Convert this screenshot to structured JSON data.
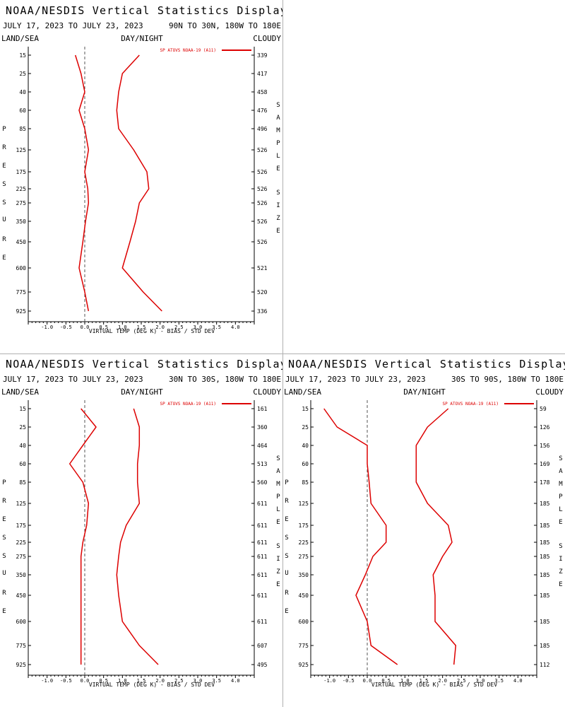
{
  "colors": {
    "series": "#dd0000",
    "axis": "#000000",
    "zero_line": "#555555",
    "divider": "#b0b0b0"
  },
  "chart_data": [
    {
      "type": "line",
      "title": "NOAA/NESDIS Vertical Statistics Display",
      "date_range": "JULY 17, 2023 TO JULY 23, 2023",
      "region": "90N TO 30N, 180W TO 180E",
      "left_header": "LAND/SEA",
      "center_header": "DAY/NIGHT",
      "right_header": "CLOUDY",
      "left_axis_label": "PRESSURE",
      "right_axis_label": "SAMPLE SIZE",
      "xlabel": "VIRTUAL TEMP (DEG K) - BIAS / STD DEV",
      "xlim": [
        -1.5,
        4.5
      ],
      "xticks": [
        "-1.0",
        "-0.5",
        "0.0",
        "0.5",
        "1.0",
        "1.5",
        "2.0",
        "2.5",
        "3.0",
        "3.5",
        "4.0"
      ],
      "legend": "SP ATOVS NOAA-19 (A11)",
      "legend_position": "top-right",
      "pressure_levels": [
        "15",
        "25",
        "40",
        "60",
        "85",
        "125",
        "175",
        "225",
        "275",
        "350",
        "450",
        "600",
        "775",
        "925"
      ],
      "sample_size": [
        "339",
        "417",
        "458",
        "476",
        "496",
        "526",
        "526",
        "526",
        "526",
        "526",
        "526",
        "521",
        "520",
        "336"
      ],
      "series": [
        {
          "name": "bias",
          "values": [
            -0.25,
            -0.1,
            0.0,
            -0.15,
            0.0,
            0.1,
            0.0,
            0.08,
            0.1,
            0.02,
            -0.05,
            -0.15,
            0.0,
            0.1
          ]
        },
        {
          "name": "std_dev",
          "values": [
            1.45,
            1.0,
            0.9,
            0.85,
            0.9,
            1.3,
            1.65,
            1.7,
            1.45,
            1.35,
            1.2,
            1.0,
            1.55,
            2.05
          ]
        }
      ]
    },
    {
      "type": "line",
      "title": "NOAA/NESDIS Vertical Statistics Display",
      "date_range": "JULY 17, 2023 TO JULY 23, 2023",
      "region": "30N TO 30S, 180W TO 180E",
      "left_header": "LAND/SEA",
      "center_header": "DAY/NIGHT",
      "right_header": "CLOUDY",
      "left_axis_label": "PRESSURE",
      "right_axis_label": "SAMPLE SIZE",
      "xlabel": "VIRTUAL TEMP (DEG K) - BIAS / STD DEV",
      "xlim": [
        -1.5,
        4.5
      ],
      "xticks": [
        "-1.0",
        "-0.5",
        "0.0",
        "0.5",
        "1.0",
        "1.5",
        "2.0",
        "2.5",
        "3.0",
        "3.5",
        "4.0"
      ],
      "legend": "SP ATOVS NOAA-19 (A11)",
      "legend_position": "top-right",
      "pressure_levels": [
        "15",
        "25",
        "40",
        "60",
        "85",
        "125",
        "175",
        "225",
        "275",
        "350",
        "450",
        "600",
        "775",
        "925"
      ],
      "sample_size": [
        "161",
        "360",
        "464",
        "513",
        "560",
        "611",
        "611",
        "611",
        "611",
        "611",
        "611",
        "611",
        "607",
        "495"
      ],
      "series": [
        {
          "name": "bias",
          "values": [
            -0.1,
            0.3,
            -0.05,
            -0.4,
            -0.05,
            0.1,
            0.05,
            -0.05,
            -0.1,
            -0.1,
            -0.1,
            -0.1,
            -0.1,
            -0.1
          ]
        },
        {
          "name": "std_dev",
          "values": [
            1.3,
            1.45,
            1.45,
            1.4,
            1.4,
            1.45,
            1.1,
            0.95,
            0.9,
            0.85,
            0.9,
            1.0,
            1.45,
            1.95
          ]
        }
      ]
    },
    {
      "type": "line",
      "title": "NOAA/NESDIS Vertical Statistics Display",
      "date_range": "JULY 17, 2023 TO JULY 23, 2023",
      "region": "30S TO 90S, 180W TO 180E",
      "left_header": "LAND/SEA",
      "center_header": "DAY/NIGHT",
      "right_header": "CLOUDY",
      "left_axis_label": "PRESSURE",
      "right_axis_label": "SAMPLE SIZE",
      "xlabel": "VIRTUAL TEMP (DEG K) - BIAS / STD DEV",
      "xlim": [
        -1.5,
        4.5
      ],
      "xticks": [
        "-1.0",
        "-0.5",
        "0.0",
        "0.5",
        "1.0",
        "1.5",
        "2.0",
        "2.5",
        "3.0",
        "3.5",
        "4.0"
      ],
      "legend": "SP ATOVS NOAA-19 (A11)",
      "legend_position": "top-right",
      "pressure_levels": [
        "15",
        "25",
        "40",
        "60",
        "85",
        "125",
        "175",
        "225",
        "275",
        "350",
        "450",
        "600",
        "775",
        "925"
      ],
      "sample_size": [
        "59",
        "126",
        "156",
        "169",
        "178",
        "185",
        "185",
        "185",
        "185",
        "185",
        "185",
        "185",
        "185",
        "112"
      ],
      "series": [
        {
          "name": "bias",
          "values": [
            -1.15,
            -0.8,
            0.0,
            0.0,
            0.05,
            0.1,
            0.5,
            0.5,
            0.15,
            -0.05,
            -0.3,
            0.0,
            0.1,
            0.8
          ]
        },
        {
          "name": "std_dev",
          "values": [
            2.15,
            1.6,
            1.3,
            1.3,
            1.3,
            1.6,
            2.15,
            2.25,
            2.0,
            1.75,
            1.8,
            1.8,
            2.35,
            2.3
          ]
        }
      ]
    }
  ]
}
